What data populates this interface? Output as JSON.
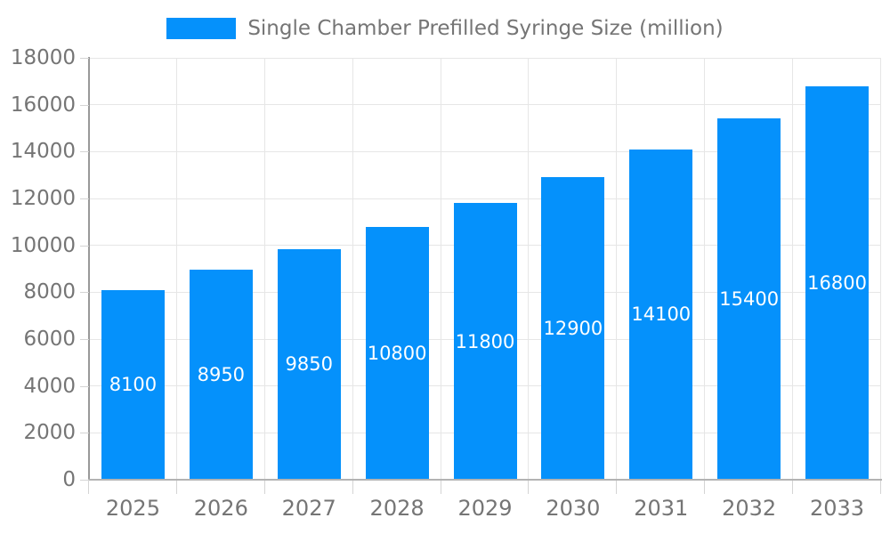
{
  "chart_data": {
    "type": "bar",
    "title": "",
    "series_name": "Single Chamber Prefilled Syringe Size (million)",
    "categories": [
      "2025",
      "2026",
      "2027",
      "2028",
      "2029",
      "2030",
      "2031",
      "2032",
      "2033"
    ],
    "values": [
      8100,
      8950,
      9850,
      10800,
      11800,
      12900,
      14100,
      15400,
      16800
    ],
    "xlabel": "",
    "ylabel": "",
    "ylim": [
      0,
      18000
    ],
    "y_ticks": [
      0,
      2000,
      4000,
      6000,
      8000,
      10000,
      12000,
      14000,
      16000,
      18000
    ],
    "grid": true,
    "legend_position": "top-center",
    "bar_labels_inside": true
  },
  "legend": {
    "label": "Single Chamber Prefilled Syringe Size (million)"
  },
  "colors": {
    "bar": "#0591fb",
    "grid": "#e6e6e6",
    "axis": "#999999",
    "x_axis_line": "#b3b3b3",
    "tick": "#d4d4d4",
    "text": "#757575",
    "bar_label": "#ffffff"
  }
}
